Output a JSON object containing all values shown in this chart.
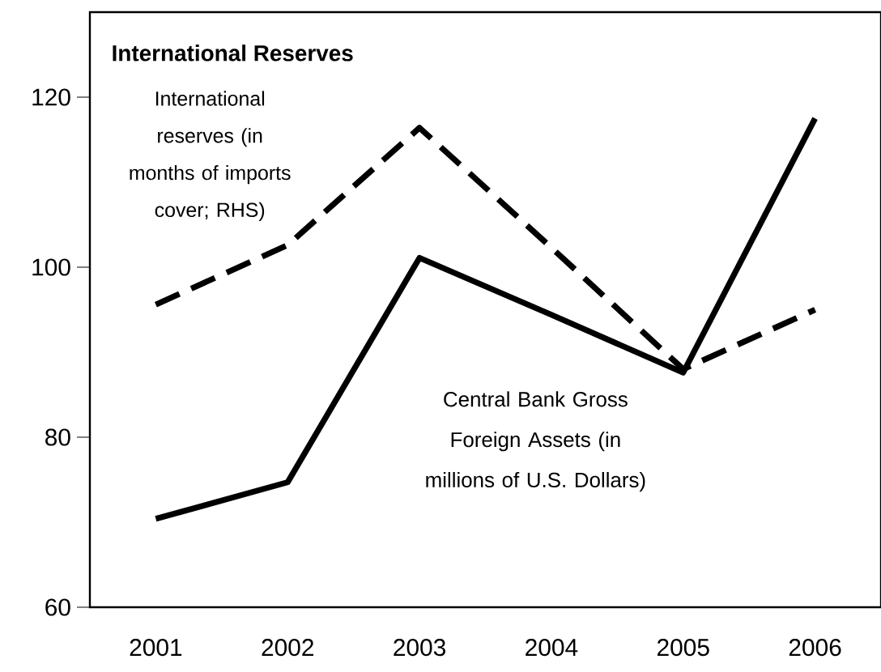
{
  "chart_data": {
    "type": "line",
    "title": "International Reserves",
    "categories": [
      "2001",
      "2002",
      "2003",
      "2004",
      "2005",
      "2006"
    ],
    "series": [
      {
        "name": "International reserves (in months of imports cover; RHS)",
        "color": "#000000",
        "line_style": "dashed",
        "values": [
          95.6,
          102.6,
          116.4,
          102.3,
          88.0,
          95.0
        ]
      },
      {
        "name": "Central Bank Gross Foreign Assets (in millions of U.S. Dollars)",
        "color": "#000000",
        "line_style": "solid",
        "values": [
          70.4,
          74.7,
          101.1,
          94.4,
          87.6,
          117.5
        ]
      }
    ],
    "ylim": [
      60,
      130
    ],
    "yticks": [
      60,
      80,
      100,
      120
    ],
    "grid": false,
    "legend": false,
    "marker": "none"
  }
}
